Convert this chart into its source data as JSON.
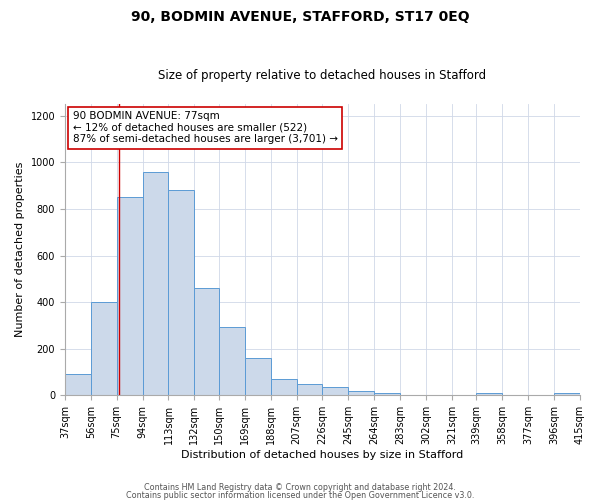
{
  "title": "90, BODMIN AVENUE, STAFFORD, ST17 0EQ",
  "subtitle": "Size of property relative to detached houses in Stafford",
  "xlabel": "Distribution of detached houses by size in Stafford",
  "ylabel": "Number of detached properties",
  "footer_line1": "Contains HM Land Registry data © Crown copyright and database right 2024.",
  "footer_line2": "Contains public sector information licensed under the Open Government Licence v3.0.",
  "bin_edges": [
    37,
    56,
    75,
    94,
    113,
    132,
    150,
    169,
    188,
    207,
    226,
    245,
    264,
    283,
    302,
    321,
    339,
    358,
    377,
    396,
    415
  ],
  "bar_heights": [
    90,
    400,
    850,
    960,
    880,
    460,
    295,
    160,
    70,
    50,
    35,
    20,
    8,
    0,
    0,
    0,
    10,
    0,
    0,
    10
  ],
  "bar_color": "#ccd9ea",
  "bar_edge_color": "#5b9bd5",
  "annotation_box_text": "90 BODMIN AVENUE: 77sqm\n← 12% of detached houses are smaller (522)\n87% of semi-detached houses are larger (3,701) →",
  "vline_x": 77,
  "vline_color": "#cc0000",
  "ylim": [
    0,
    1250
  ],
  "yticks": [
    0,
    200,
    400,
    600,
    800,
    1000,
    1200
  ],
  "tick_labels": [
    "37sqm",
    "56sqm",
    "75sqm",
    "94sqm",
    "113sqm",
    "132sqm",
    "150sqm",
    "169sqm",
    "188sqm",
    "207sqm",
    "226sqm",
    "245sqm",
    "264sqm",
    "283sqm",
    "302sqm",
    "321sqm",
    "339sqm",
    "358sqm",
    "377sqm",
    "396sqm",
    "415sqm"
  ],
  "background_color": "#ffffff",
  "grid_color": "#d0d8e8",
  "title_fontsize": 10,
  "subtitle_fontsize": 8.5,
  "axis_label_fontsize": 8,
  "tick_fontsize": 7,
  "annotation_fontsize": 7.5,
  "footer_fontsize": 5.8
}
